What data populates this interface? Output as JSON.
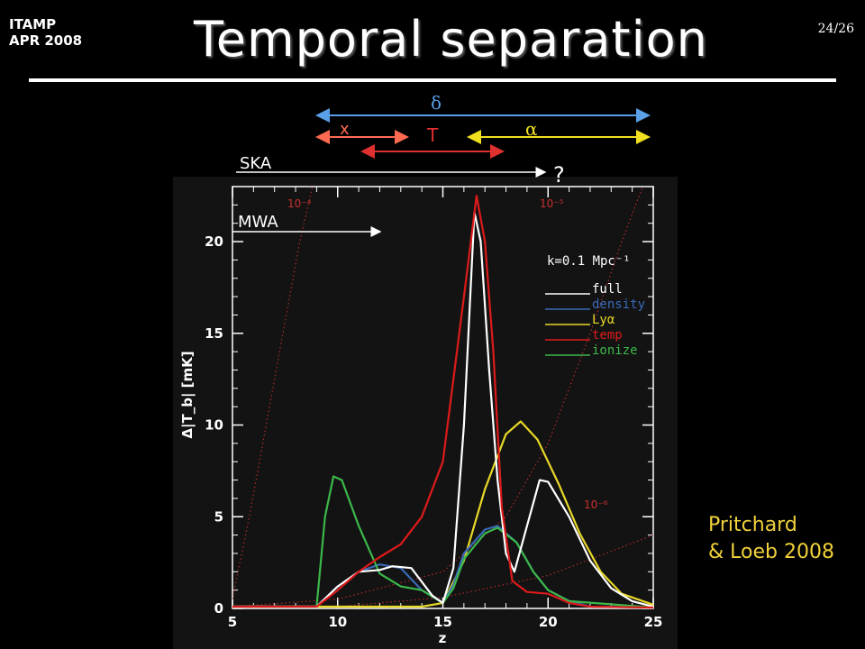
{
  "header": {
    "conference_line1": "ITAMP",
    "conference_line2": "APR 2008",
    "title": "Temporal separation",
    "page": "24/26"
  },
  "citation": {
    "line1": "Pritchard",
    "line2": "& Loeb 2008"
  },
  "annotations": {
    "delta": "δ",
    "x": "x",
    "T": "T",
    "alpha": "α",
    "ska": "SKA",
    "question": "?",
    "mwa": "MWA"
  },
  "colors": {
    "delta_arrow": "#5aa0e6",
    "x_arrow": "#ff6a50",
    "T_arrow": "#e03030",
    "alpha_arrow": "#f0e020",
    "full": "#ffffff",
    "density": "#3a6ab8",
    "lya": "#e8d828",
    "temp": "#dd1a1a",
    "ionize": "#3cb84a",
    "citation": "#f0d23a"
  },
  "chart_data": {
    "type": "line",
    "xlabel": "z",
    "ylabel": "Δ|T_b| [mK]",
    "xlim": [
      5,
      25
    ],
    "ylim": [
      0,
      23
    ],
    "xticks": [
      5,
      10,
      15,
      20,
      25
    ],
    "yticks": [
      0,
      5,
      10,
      15,
      20
    ],
    "legend_title": "k=0.1 Mpc⁻¹",
    "legend_position": "right",
    "series": [
      {
        "name": "full",
        "color": "#ffffff",
        "points": [
          [
            5,
            0.1
          ],
          [
            9,
            0.1
          ],
          [
            10,
            1.2
          ],
          [
            11,
            2.0
          ],
          [
            12,
            2.1
          ],
          [
            12.6,
            2.3
          ],
          [
            13.5,
            2.2
          ],
          [
            14.5,
            0.7
          ],
          [
            15,
            0.3
          ],
          [
            15.5,
            2.2
          ],
          [
            16,
            10
          ],
          [
            16.5,
            21.6
          ],
          [
            16.8,
            20
          ],
          [
            17.2,
            13
          ],
          [
            17.6,
            7
          ],
          [
            18,
            3
          ],
          [
            18.4,
            2.0
          ],
          [
            19,
            4.5
          ],
          [
            19.6,
            7.0
          ],
          [
            20,
            6.9
          ],
          [
            21,
            5.0
          ],
          [
            22,
            2.6
          ],
          [
            23,
            1.1
          ],
          [
            24,
            0.4
          ],
          [
            25,
            0.1
          ]
        ]
      },
      {
        "name": "density",
        "color": "#3a6ab8",
        "points": [
          [
            5,
            0.1
          ],
          [
            9,
            0.1
          ],
          [
            10,
            1.2
          ],
          [
            11,
            2.0
          ],
          [
            12,
            2.4
          ],
          [
            13,
            2.2
          ],
          [
            14,
            1.0
          ],
          [
            15,
            0.3
          ],
          [
            15.5,
            1.3
          ],
          [
            16,
            3.0
          ],
          [
            17,
            4.3
          ],
          [
            17.6,
            4.5
          ],
          [
            18.5,
            3.6
          ],
          [
            19.3,
            2.0
          ],
          [
            20,
            1.0
          ],
          [
            21,
            0.4
          ],
          [
            22,
            0.1
          ],
          [
            25,
            0.05
          ]
        ]
      },
      {
        "name": "Lyα",
        "color": "#e8d828",
        "points": [
          [
            5,
            0.1
          ],
          [
            14,
            0.1
          ],
          [
            15,
            0.3
          ],
          [
            16,
            2.6
          ],
          [
            17,
            6.5
          ],
          [
            18,
            9.5
          ],
          [
            18.7,
            10.2
          ],
          [
            19.5,
            9.2
          ],
          [
            20.5,
            6.8
          ],
          [
            21.5,
            4.1
          ],
          [
            22.5,
            2.0
          ],
          [
            23.5,
            0.8
          ],
          [
            25,
            0.2
          ]
        ]
      },
      {
        "name": "temp",
        "color": "#dd1a1a",
        "points": [
          [
            5,
            0.1
          ],
          [
            9,
            0.1
          ],
          [
            10,
            1.0
          ],
          [
            11,
            2.0
          ],
          [
            12,
            2.8
          ],
          [
            13,
            3.5
          ],
          [
            14,
            5.0
          ],
          [
            15,
            8.0
          ],
          [
            16,
            17
          ],
          [
            16.6,
            22.5
          ],
          [
            17,
            20
          ],
          [
            17.4,
            14
          ],
          [
            17.8,
            5.5
          ],
          [
            18.3,
            1.5
          ],
          [
            19,
            0.9
          ],
          [
            20,
            0.8
          ],
          [
            21,
            0.3
          ],
          [
            22,
            0.1
          ],
          [
            25,
            0.05
          ]
        ]
      },
      {
        "name": "ionize",
        "color": "#3cb84a",
        "points": [
          [
            5,
            0.1
          ],
          [
            9,
            0.1
          ],
          [
            9.4,
            5.0
          ],
          [
            9.8,
            7.2
          ],
          [
            10.2,
            7.0
          ],
          [
            11,
            4.5
          ],
          [
            12,
            1.9
          ],
          [
            13,
            1.2
          ],
          [
            14,
            1.0
          ],
          [
            15,
            0.3
          ],
          [
            15.5,
            1.1
          ],
          [
            16,
            2.7
          ],
          [
            17,
            4.1
          ],
          [
            17.6,
            4.4
          ],
          [
            18.5,
            3.6
          ],
          [
            19.3,
            2.0
          ],
          [
            20,
            1.0
          ],
          [
            21,
            0.4
          ],
          [
            25,
            0.05
          ]
        ]
      }
    ],
    "iso_curves": [
      {
        "label": "10⁻⁴",
        "points": [
          [
            5,
            0.5
          ],
          [
            5.8,
            5
          ],
          [
            6.6,
            10
          ],
          [
            7.4,
            15
          ],
          [
            8.2,
            20
          ],
          [
            8.8,
            23
          ]
        ]
      },
      {
        "label": "10⁻⁵",
        "points": [
          [
            5,
            0.1
          ],
          [
            10,
            0.5
          ],
          [
            15,
            2
          ],
          [
            18,
            5
          ],
          [
            20,
            9
          ],
          [
            22,
            15
          ],
          [
            23.5,
            20
          ],
          [
            24.5,
            23
          ]
        ]
      },
      {
        "label": "10⁻⁶",
        "points": [
          [
            5,
            0.05
          ],
          [
            10,
            0.1
          ],
          [
            15,
            0.6
          ],
          [
            20,
            1.8
          ],
          [
            25,
            4
          ]
        ]
      }
    ]
  }
}
